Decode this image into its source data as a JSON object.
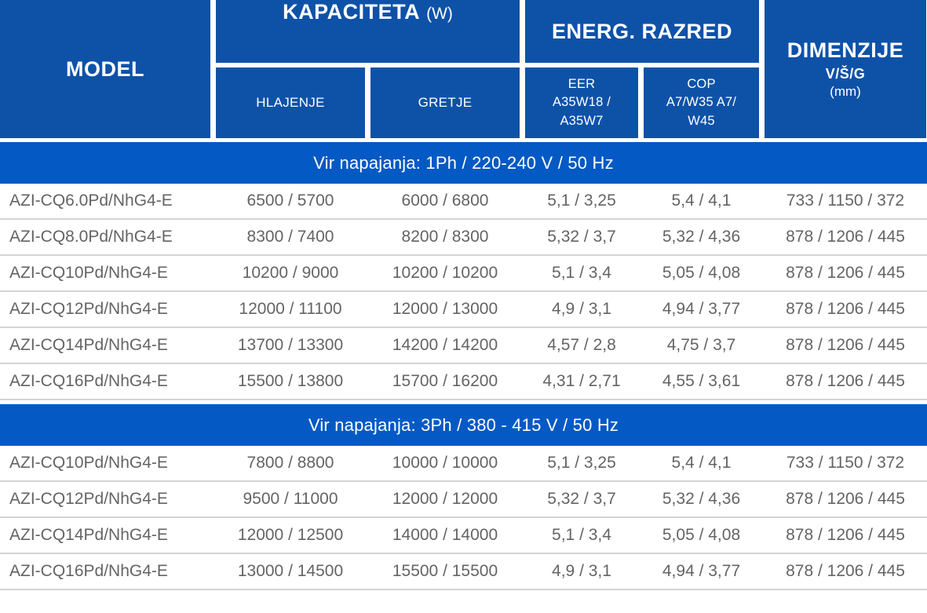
{
  "colors": {
    "header_blue": "#0e52a8",
    "band_blue": "#0459c4",
    "row_text": "#646464",
    "separator": "#d4d4d4"
  },
  "table": {
    "header": {
      "model_label": "MODEL",
      "kapaciteta_label": "KAPACITETA",
      "kapaciteta_unit": "(W)",
      "hlajenje_label": "HLAJENJE",
      "gretje_label": "GRETJE",
      "energ_razred_label": "ENERG. RAZRED",
      "eer_line1": "EER",
      "eer_line2": "A35W18 /",
      "eer_line3": "A35W7",
      "cop_line1": "COP",
      "cop_line2": "A7/W35 A7/",
      "cop_line3": "W45",
      "dimenzije_label": "DIMENZIJE",
      "dimenzije_sub": "V/Š/G",
      "dimenzije_unit": "(mm)"
    },
    "sections": [
      {
        "title": "Vir napajanja: 1Ph / 220-240 V / 50 Hz",
        "rows": [
          {
            "model": "AZI-CQ6.0Pd/NhG4-E",
            "hlajenje": "6500 / 5700",
            "gretje": "6000 / 6800",
            "eer": "5,1 / 3,25",
            "cop": "5,4 / 4,1",
            "dim": "733 / 1150 / 372"
          },
          {
            "model": "AZI-CQ8.0Pd/NhG4-E",
            "hlajenje": "8300 / 7400",
            "gretje": "8200 / 8300",
            "eer": "5,32 / 3,7",
            "cop": "5,32 / 4,36",
            "dim": "878 / 1206 / 445"
          },
          {
            "model": "AZI-CQ10Pd/NhG4-E",
            "hlajenje": "10200 / 9000",
            "gretje": "10200 / 10200",
            "eer": "5,1 / 3,4",
            "cop": "5,05 / 4,08",
            "dim": "878 / 1206 / 445"
          },
          {
            "model": "AZI-CQ12Pd/NhG4-E",
            "hlajenje": "12000 / 11100",
            "gretje": "12000 / 13000",
            "eer": "4,9 / 3,1",
            "cop": "4,94 / 3,77",
            "dim": "878 / 1206 / 445"
          },
          {
            "model": "AZI-CQ14Pd/NhG4-E",
            "hlajenje": "13700 / 13300",
            "gretje": "14200 / 14200",
            "eer": "4,57 / 2,8",
            "cop": "4,75 / 3,7",
            "dim": "878 / 1206 / 445"
          },
          {
            "model": "AZI-CQ16Pd/NhG4-E",
            "hlajenje": "15500 / 13800",
            "gretje": "15700 / 16200",
            "eer": "4,31 / 2,71",
            "cop": "4,55 / 3,61",
            "dim": "878 / 1206 / 445"
          }
        ]
      },
      {
        "title": "Vir napajanja:  3Ph / 380 - 415 V / 50 Hz",
        "rows": [
          {
            "model": "AZI-CQ10Pd/NhG4-E",
            "hlajenje": "7800 / 8800",
            "gretje": "10000 / 10000",
            "eer": "5,1 / 3,25",
            "cop": "5,4 / 4,1",
            "dim": "733 / 1150 / 372"
          },
          {
            "model": "AZI-CQ12Pd/NhG4-E",
            "hlajenje": "9500 / 11000",
            "gretje": "12000 / 12000",
            "eer": "5,32 / 3,7",
            "cop": "5,32 / 4,36",
            "dim": "878 / 1206 / 445"
          },
          {
            "model": "AZI-CQ14Pd/NhG4-E",
            "hlajenje": "12000 / 12500",
            "gretje": "14000 / 14000",
            "eer": "5,1 / 3,4",
            "cop": "5,05 / 4,08",
            "dim": "878 / 1206 / 445"
          },
          {
            "model": "AZI-CQ16Pd/NhG4-E",
            "hlajenje": "13000 / 14500",
            "gretje": "15500 / 15500",
            "eer": "4,9 / 3,1",
            "cop": "4,94 / 3,77",
            "dim": "878 / 1206 / 445"
          }
        ]
      }
    ]
  }
}
